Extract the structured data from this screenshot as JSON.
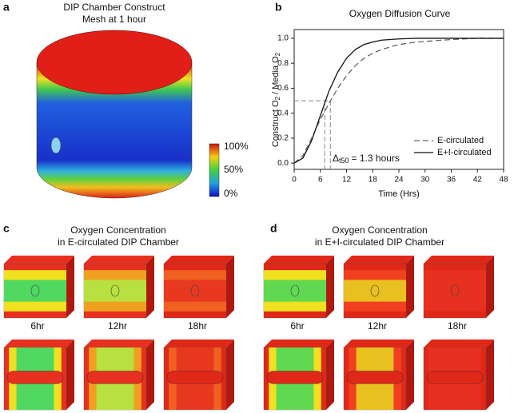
{
  "panels": {
    "a": {
      "label": "a",
      "title": [
        "DIP Chamber Construct",
        "Mesh at 1 hour"
      ],
      "colorbar_labels": [
        "100%",
        "50%",
        "0%"
      ]
    },
    "b": {
      "label": "b"
    },
    "c": {
      "label": "c",
      "title": [
        "Oxygen Concentration",
        "in E-circulated DIP Chamber"
      ],
      "times": [
        "6hr",
        "12hr",
        "18hr"
      ]
    },
    "d": {
      "label": "d",
      "title": [
        "Oxygen Concentration",
        "in E+I-circulated DIP Chamber"
      ],
      "times": [
        "6hr",
        "12hr",
        "18hr"
      ]
    }
  },
  "chart_data": {
    "type": "line",
    "title": "Oxygen Diffusion Curve",
    "xlabel": "Time (Hrs)",
    "ylabel": [
      "Construct O",
      "2",
      " / Media O",
      "2"
    ],
    "x": [
      0,
      2,
      4,
      6,
      8,
      10,
      12,
      14,
      16,
      18,
      20,
      24,
      28,
      32,
      36,
      42,
      48
    ],
    "series": [
      {
        "name": "E-circulated",
        "color": "#666666",
        "dash": "7 4",
        "values": [
          0,
          0.06,
          0.2,
          0.35,
          0.48,
          0.6,
          0.7,
          0.78,
          0.84,
          0.88,
          0.91,
          0.95,
          0.97,
          0.98,
          0.99,
          1,
          1
        ]
      },
      {
        "name": "E+I-circulated",
        "color": "#111111",
        "dash": "none",
        "values": [
          0,
          0.04,
          0.18,
          0.38,
          0.58,
          0.73,
          0.84,
          0.91,
          0.95,
          0.97,
          0.985,
          0.995,
          1,
          1,
          1,
          1,
          1
        ]
      }
    ],
    "ref_y": 0.5,
    "ref_x": [
      7,
      8.3
    ],
    "annotation": {
      "delta": "Δ",
      "sub": "t50",
      "text": "= 1.3 hours"
    },
    "xlim": [
      0,
      48
    ],
    "xticks": [
      0,
      6,
      12,
      18,
      24,
      30,
      36,
      42,
      48
    ],
    "ylim": [
      -0.05,
      1.07
    ],
    "yticks": [
      {
        "value": 0,
        "label": "0.0"
      },
      {
        "value": 0.2,
        "label": "0.2"
      },
      {
        "value": 0.4,
        "label": "0.4"
      },
      {
        "value": 0.6,
        "label": "0.6"
      },
      {
        "value": 0.8,
        "label": "0.8"
      },
      {
        "value": 1,
        "label": "1.0"
      }
    ],
    "legend": "lower right"
  }
}
